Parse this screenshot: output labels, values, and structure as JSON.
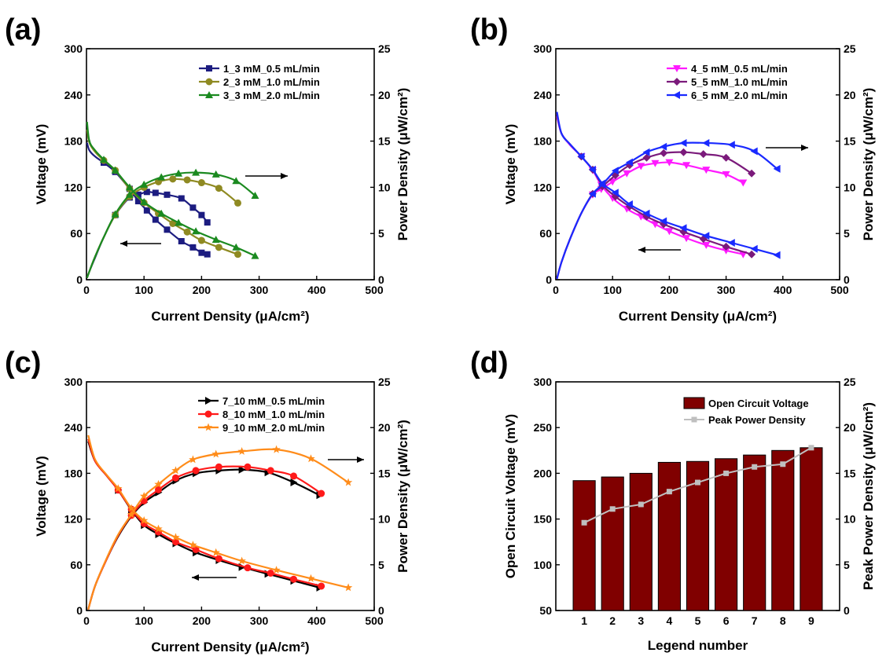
{
  "chart_data": [
    {
      "panel": "(a)",
      "type": "line",
      "xlabel": "Current Density (μA/cm²)",
      "ylabel": "Voltage (mV)",
      "ylabel_right": "Power Density (μW/cm²)",
      "xlim": [
        0,
        500
      ],
      "xticks": [
        "0",
        "100",
        "200",
        "300",
        "400",
        "500"
      ],
      "ylim": [
        0,
        300
      ],
      "yticks": [
        "0",
        "60",
        "120",
        "180",
        "240",
        "300"
      ],
      "y2lim": [
        0,
        25
      ],
      "y2ticks": [
        "0",
        "5",
        "10",
        "15",
        "20",
        "25"
      ],
      "legend_position": "top-right",
      "series": [
        {
          "name": "1_3 mM_0.5 mL/min",
          "color": "#1c1c80",
          "marker": "square",
          "voltage": {
            "x": [
              1,
              5,
              15,
              30,
              50,
              75,
              90,
              105,
              120,
              140,
              165,
              185,
              200,
              210
            ],
            "y": [
              178,
              168,
              160,
              152,
              140,
              118,
              102,
              90,
              78,
              65,
              50,
              42,
              35,
              33
            ]
          },
          "power": {
            "x": [
              1,
              5,
              15,
              30,
              50,
              75,
              90,
              105,
              120,
              140,
              165,
              185,
              200,
              210
            ],
            "y": [
              0.2,
              0.9,
              2.4,
              4.6,
              7.0,
              8.9,
              9.2,
              9.5,
              9.4,
              9.2,
              8.8,
              7.8,
              7.0,
              6.2
            ]
          }
        },
        {
          "name": "2_3 mM_1.0 mL/min",
          "color": "#8f8a22",
          "marker": "circle",
          "voltage": {
            "x": [
              1,
              5,
              15,
              30,
              50,
              75,
              100,
              125,
              150,
              175,
              200,
              230,
              263
            ],
            "y": [
              195,
              178,
              166,
              155,
              142,
              118,
              100,
              86,
              73,
              62,
              51,
              42,
              33
            ]
          },
          "power": {
            "x": [
              1,
              5,
              15,
              30,
              50,
              75,
              100,
              125,
              150,
              175,
              200,
              230,
              263
            ],
            "y": [
              0.2,
              0.9,
              2.5,
              4.6,
              7.0,
              9.0,
              10.0,
              10.6,
              10.9,
              10.8,
              10.5,
              9.9,
              8.3
            ]
          }
        },
        {
          "name": "3_3 mM_2.0 mL/min",
          "color": "#1b8a20",
          "marker": "triangle",
          "voltage": {
            "x": [
              1,
              5,
              15,
              30,
              50,
              75,
              100,
              130,
              160,
              190,
              225,
              260,
              293
            ],
            "y": [
              205,
              180,
              168,
              156,
              142,
              120,
              101,
              86,
              74,
              63,
              52,
              42,
              31
            ]
          },
          "power": {
            "x": [
              1,
              5,
              15,
              30,
              50,
              75,
              100,
              130,
              160,
              190,
              225,
              260,
              293
            ],
            "y": [
              0.2,
              0.9,
              2.5,
              4.6,
              7.1,
              9.2,
              10.3,
              11.1,
              11.5,
              11.6,
              11.4,
              10.7,
              9.1
            ]
          }
        }
      ]
    },
    {
      "panel": "(b)",
      "type": "line",
      "xlabel": "Current Density (μA/cm²)",
      "ylabel": "Voltage (mV)",
      "ylabel_right": "Power Density (μW/cm²)",
      "xlim": [
        0,
        500
      ],
      "xticks": [
        "0",
        "100",
        "200",
        "300",
        "400",
        "500"
      ],
      "ylim": [
        0,
        300
      ],
      "yticks": [
        "0",
        "60",
        "120",
        "180",
        "240",
        "300"
      ],
      "y2lim": [
        0,
        25
      ],
      "y2ticks": [
        "0",
        "5",
        "10",
        "15",
        "20",
        "25"
      ],
      "legend_position": "top-right",
      "series": [
        {
          "name": "4_5 mM_0.5 mL/min",
          "color": "#ff1aff",
          "marker": "triangle-down",
          "voltage": {
            "x": [
              2,
              10,
              25,
              45,
              65,
              80,
              100,
              125,
              150,
              175,
              200,
              230,
              265,
              300,
              330
            ],
            "y": [
              212,
              190,
              175,
              160,
              142,
              123,
              106,
              92,
              82,
              72,
              63,
              54,
              45,
              38,
              33
            ]
          },
          "power": {
            "x": [
              2,
              10,
              25,
              45,
              65,
              80,
              100,
              125,
              150,
              175,
              200,
              230,
              265,
              300,
              330
            ],
            "y": [
              0.1,
              1.9,
              4.4,
              7.2,
              9.2,
              9.8,
              10.6,
              11.5,
              12.3,
              12.6,
              12.7,
              12.4,
              11.9,
              11.4,
              10.5
            ]
          }
        },
        {
          "name": "5_5 mM_1.0 mL/min",
          "color": "#7b1a7b",
          "marker": "diamond",
          "voltage": {
            "x": [
              2,
              10,
              25,
              45,
              65,
              82,
              105,
              130,
              160,
              190,
              225,
              260,
              300,
              345
            ],
            "y": [
              215,
              190,
              176,
              160,
              143,
              123,
              108,
              95,
              82,
              72,
              62,
              53,
              43,
              33
            ]
          },
          "power": {
            "x": [
              2,
              10,
              25,
              45,
              65,
              82,
              105,
              130,
              160,
              190,
              225,
              260,
              300,
              345
            ],
            "y": [
              0.1,
              1.9,
              4.4,
              7.2,
              9.3,
              10.1,
              11.3,
              12.4,
              13.2,
              13.7,
              13.8,
              13.6,
              13.2,
              11.5
            ]
          }
        },
        {
          "name": "6_5 mM_2.0 mL/min",
          "color": "#1a2aff",
          "marker": "triangle-left",
          "voltage": {
            "x": [
              2,
              10,
              25,
              45,
              65,
              82,
              105,
              130,
              160,
              190,
              225,
              265,
              310,
              350,
              390
            ],
            "y": [
              218,
              190,
              176,
              160,
              143,
              125,
              113,
              98,
              86,
              76,
              67,
              57,
              48,
              40,
              32
            ]
          },
          "power": {
            "x": [
              2,
              10,
              25,
              45,
              65,
              82,
              105,
              130,
              160,
              190,
              225,
              265,
              310,
              350,
              390
            ],
            "y": [
              0.1,
              1.9,
              4.4,
              7.2,
              9.3,
              10.3,
              11.8,
              12.7,
              13.8,
              14.4,
              14.8,
              14.8,
              14.6,
              13.9,
              12.0
            ]
          }
        }
      ]
    },
    {
      "panel": "(c)",
      "type": "line",
      "xlabel": "Current Density (μA/cm²)",
      "ylabel": "Voltage (mV)",
      "ylabel_right": "Power Density (μW/cm²)",
      "xlim": [
        0,
        500
      ],
      "xticks": [
        "0",
        "100",
        "200",
        "300",
        "400",
        "500"
      ],
      "ylim": [
        0,
        300
      ],
      "yticks": [
        "0",
        "60",
        "120",
        "180",
        "240",
        "300"
      ],
      "y2lim": [
        0,
        25
      ],
      "y2ticks": [
        "0",
        "5",
        "10",
        "15",
        "20",
        "25"
      ],
      "legend_position": "top-right",
      "series": [
        {
          "name": "7_10 mM_0.5 mL/min",
          "color": "#000000",
          "marker": "triangle-right",
          "voltage": {
            "x": [
              3,
              15,
              35,
              55,
              78,
              100,
              125,
              155,
              190,
              230,
              270,
              315,
              360,
              405
            ],
            "y": [
              222,
              196,
              177,
              158,
              132,
              112,
              100,
              88,
              76,
              66,
              57,
              48,
              39,
              30
            ]
          },
          "power": {
            "x": [
              3,
              15,
              35,
              55,
              78,
              100,
              125,
              155,
              190,
              230,
              270,
              315,
              360,
              405
            ],
            "y": [
              0.1,
              2.7,
              5.6,
              8.1,
              10.3,
              11.8,
              12.9,
              14.2,
              15.0,
              15.3,
              15.4,
              15.1,
              14.0,
              12.6
            ]
          }
        },
        {
          "name": "8_10 mM_1.0 mL/min",
          "color": "#ff1a1a",
          "marker": "circle",
          "voltage": {
            "x": [
              3,
              15,
              35,
              55,
              78,
              100,
              125,
              155,
              190,
              230,
              280,
              320,
              360,
              408
            ],
            "y": [
              225,
              196,
              177,
              158,
              133,
              114,
              103,
              90,
              80,
              68,
              56,
              49,
              41,
              32
            ]
          },
          "power": {
            "x": [
              3,
              15,
              35,
              55,
              78,
              100,
              125,
              155,
              190,
              230,
              280,
              320,
              360,
              408
            ],
            "y": [
              0.1,
              2.7,
              5.6,
              8.2,
              10.4,
              12.0,
              13.2,
              14.5,
              15.3,
              15.7,
              15.7,
              15.3,
              14.7,
              12.8
            ]
          }
        },
        {
          "name": "9_10 mM_2.0 mL/min",
          "color": "#ff8c1a",
          "marker": "star",
          "voltage": {
            "x": [
              3,
              15,
              35,
              55,
              78,
              100,
              125,
              155,
              185,
              225,
              270,
              330,
              390,
              455
            ],
            "y": [
              230,
              198,
              178,
              160,
              134,
              118,
              107,
              96,
              86,
              76,
              65,
              53,
              42,
              30
            ]
          },
          "power": {
            "x": [
              3,
              15,
              35,
              55,
              78,
              100,
              125,
              155,
              185,
              225,
              270,
              330,
              390,
              455
            ],
            "y": [
              0.1,
              2.7,
              5.7,
              8.3,
              10.5,
              12.5,
              13.8,
              15.3,
              16.5,
              17.1,
              17.4,
              17.6,
              16.6,
              14.0
            ]
          }
        }
      ]
    },
    {
      "panel": "(d)",
      "type": "bar",
      "xlabel": "Legend number",
      "ylabel": "Open Circuit Voltage (mV)",
      "ylabel_right": "Peak Power Density (μW/cm²)",
      "categories": [
        "1",
        "2",
        "3",
        "4",
        "5",
        "6",
        "7",
        "8",
        "9"
      ],
      "ylim": [
        50,
        300
      ],
      "yticks": [
        "50",
        "100",
        "150",
        "200",
        "250",
        "300"
      ],
      "y2lim": [
        0,
        25
      ],
      "y2ticks": [
        "0",
        "5",
        "10",
        "15",
        "20",
        "25"
      ],
      "legend_position": "top-right",
      "series": [
        {
          "name": "Open Circuit Voltage",
          "color": "#800000",
          "axis": "left",
          "kind": "bar",
          "values": [
            192,
            196,
            200,
            212,
            213,
            216,
            220,
            225,
            228
          ]
        },
        {
          "name": "Peak Power Density",
          "color": "#bfbfbf",
          "axis": "right",
          "kind": "line",
          "values": [
            9.6,
            11.1,
            11.6,
            13.0,
            14.0,
            15.0,
            15.7,
            16.0,
            17.8
          ]
        }
      ]
    }
  ],
  "panels": {
    "a": {
      "label": "(a)"
    },
    "b": {
      "label": "(b)"
    },
    "c": {
      "label": "(c)"
    },
    "d": {
      "label": "(d)"
    }
  }
}
